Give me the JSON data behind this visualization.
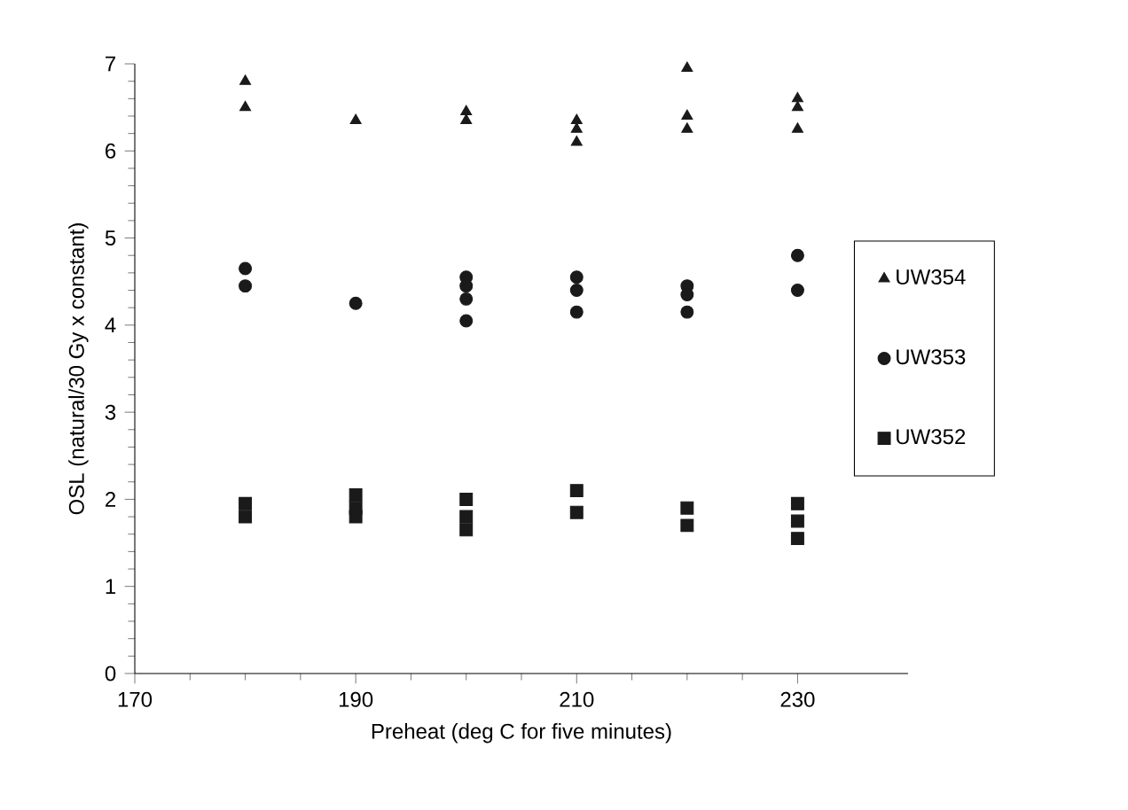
{
  "chart_data": {
    "type": "scatter",
    "xlabel": "Preheat (deg C for five minutes)",
    "ylabel": "OSL (natural/30 Gy x constant)",
    "xlim": [
      170,
      240
    ],
    "xticks": [
      170,
      190,
      210,
      230
    ],
    "ylim": [
      0,
      7
    ],
    "yticks": [
      0,
      1,
      2,
      3,
      4,
      5,
      6,
      7
    ],
    "grid": false,
    "legend": "right",
    "series": [
      {
        "name": "UW354",
        "color": "#1a1a1a",
        "marker": "triangle",
        "x": [
          180,
          180,
          190,
          200,
          200,
          210,
          210,
          210,
          220,
          220,
          220,
          230,
          230,
          230
        ],
        "values": [
          6.8,
          6.5,
          6.35,
          6.45,
          6.35,
          6.35,
          6.25,
          6.1,
          6.95,
          6.4,
          6.25,
          6.6,
          6.5,
          6.25
        ]
      },
      {
        "name": "UW353",
        "color": "#1a1a1a",
        "marker": "circle",
        "x": [
          180,
          180,
          190,
          200,
          200,
          200,
          200,
          210,
          210,
          210,
          220,
          220,
          220,
          230,
          230
        ],
        "values": [
          4.65,
          4.45,
          4.25,
          4.55,
          4.45,
          4.3,
          4.05,
          4.55,
          4.4,
          4.15,
          4.45,
          4.35,
          4.15,
          4.8,
          4.4
        ]
      },
      {
        "name": "UW352",
        "color": "#1a1a1a",
        "marker": "square",
        "x": [
          180,
          180,
          190,
          190,
          190,
          200,
          200,
          200,
          210,
          210,
          220,
          220,
          230,
          230,
          230
        ],
        "values": [
          1.95,
          1.8,
          2.05,
          1.9,
          1.8,
          2.0,
          1.8,
          1.65,
          2.1,
          1.85,
          1.9,
          1.7,
          1.95,
          1.75,
          1.55
        ]
      }
    ]
  }
}
